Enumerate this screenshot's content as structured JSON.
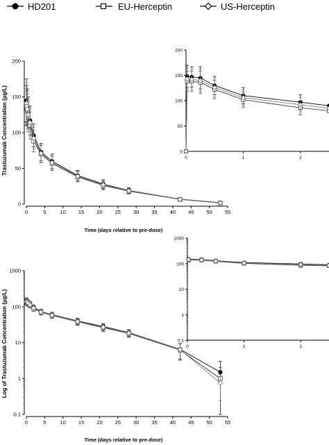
{
  "legend": {
    "items": [
      {
        "label": "HD201",
        "marker": "filled-circle"
      },
      {
        "label": "EU-Herceptin",
        "marker": "open-square"
      },
      {
        "label": "US-Herceptin",
        "marker": "open-diamond"
      }
    ]
  },
  "colors": {
    "HD201": "#000000",
    "EU-Herceptin": "#3a3a3a",
    "US-Herceptin": "#7a7a7a"
  },
  "chart_data": [
    {
      "type": "line",
      "scale": "linear",
      "xlabel": "Time (days relative to pre-dose)",
      "ylabel": "Trastuzumab Concentration (µg/L)",
      "xlim": [
        0,
        55
      ],
      "ylim": [
        0,
        200
      ],
      "xticks": [
        0,
        5,
        10,
        15,
        20,
        25,
        30,
        35,
        40,
        45,
        50,
        55
      ],
      "yticks": [
        0,
        50,
        100,
        150,
        200
      ],
      "x": [
        0.02,
        0.1,
        0.25,
        0.5,
        1,
        2,
        4,
        7,
        14,
        21,
        28,
        42,
        53
      ],
      "series": [
        {
          "name": "HD201",
          "values": [
            145,
            140,
            136,
            128,
            117,
            96,
            73,
            60,
            40,
            28,
            19,
            7,
            2
          ],
          "err": [
            30,
            26,
            25,
            22,
            20,
            16,
            12,
            10,
            7,
            6,
            4,
            2,
            1
          ]
        },
        {
          "name": "EU-Herceptin",
          "values": [
            138,
            134,
            130,
            122,
            110,
            88,
            70,
            57,
            38,
            26,
            18,
            6.5,
            1.5
          ],
          "err": [
            28,
            25,
            24,
            21,
            19,
            15,
            12,
            10,
            7,
            6,
            4,
            2,
            1
          ]
        },
        {
          "name": "US-Herceptin",
          "values": [
            141,
            137,
            133,
            125,
            114,
            92,
            71,
            58,
            39,
            27,
            18.5,
            6.7,
            1.7
          ],
          "err": [
            29,
            25,
            24,
            21,
            19,
            15,
            12,
            10,
            7,
            6,
            4,
            2,
            1
          ]
        }
      ]
    },
    {
      "type": "line",
      "scale": "linear",
      "inset": true,
      "xlim": [
        0,
        2.5
      ],
      "ylim": [
        0,
        200
      ],
      "xticks": [
        0,
        1,
        2
      ],
      "yticks": [
        0,
        50,
        100,
        150,
        200
      ],
      "x": [
        0,
        0.02,
        0.1,
        0.25,
        0.5,
        1,
        2,
        2.5
      ],
      "series": [
        {
          "name": "HD201",
          "values": [
            0,
            148,
            147,
            145,
            130,
            110,
            97,
            90
          ],
          "err": [
            0,
            22,
            20,
            22,
            18,
            16,
            15,
            0
          ]
        },
        {
          "name": "EU-Herceptin",
          "values": [
            0,
            138,
            138,
            136,
            122,
            102,
            86,
            80
          ],
          "err": [
            0,
            20,
            20,
            22,
            18,
            15,
            14,
            0
          ]
        },
        {
          "name": "US-Herceptin",
          "values": [
            0,
            143,
            142,
            140,
            126,
            106,
            92,
            85
          ],
          "err": [
            0,
            21,
            20,
            22,
            18,
            15,
            14,
            0
          ]
        }
      ]
    },
    {
      "type": "line",
      "scale": "log",
      "xlabel": "Time (days relative to pre-dose)",
      "ylabel": "Log of Trastuzumab Concentration (µg/L)",
      "xlim": [
        0,
        55
      ],
      "ylim": [
        0.1,
        1000
      ],
      "xticks": [
        0,
        5,
        10,
        15,
        20,
        25,
        30,
        35,
        40,
        45,
        50,
        55
      ],
      "yticks": [
        0.1,
        1,
        10,
        100,
        1000
      ],
      "ytick_labels": [
        "0.1",
        "1",
        "10",
        "100",
        "1000"
      ],
      "x": [
        0.02,
        0.1,
        0.25,
        0.5,
        1,
        2,
        4,
        7,
        14,
        21,
        28,
        42,
        53
      ],
      "series": [
        {
          "name": "HD201",
          "values": [
            145,
            140,
            136,
            128,
            117,
            96,
            73,
            60,
            40,
            28,
            19,
            6.5,
            1.5
          ],
          "err": [
            30,
            26,
            25,
            22,
            20,
            16,
            12,
            10,
            8,
            6,
            4,
            3,
            1.5
          ]
        },
        {
          "name": "EU-Herceptin",
          "values": [
            138,
            134,
            130,
            122,
            110,
            88,
            70,
            57,
            38,
            26,
            18,
            6.2,
            1.0
          ],
          "err": [
            28,
            25,
            24,
            21,
            19,
            15,
            12,
            10,
            8,
            6,
            4,
            3,
            1
          ]
        },
        {
          "name": "US-Herceptin",
          "values": [
            141,
            137,
            133,
            125,
            114,
            92,
            71,
            58,
            39,
            27,
            18.5,
            6.4,
            0.75
          ],
          "err": [
            29,
            25,
            24,
            21,
            19,
            15,
            12,
            10,
            8,
            6,
            4,
            3,
            0.5
          ]
        }
      ]
    },
    {
      "type": "line",
      "scale": "log",
      "inset": true,
      "xlim": [
        0,
        2.5
      ],
      "ylim": [
        0.1,
        1000
      ],
      "xticks": [
        0,
        1,
        2
      ],
      "yticks": [
        0.1,
        1,
        10,
        100,
        1000
      ],
      "ytick_labels": [
        "0.1",
        "1",
        "10",
        "100",
        "1000"
      ],
      "x": [
        0.02,
        0.25,
        0.5,
        1,
        2,
        2.5
      ],
      "series": [
        {
          "name": "HD201",
          "values": [
            148,
            145,
            130,
            110,
            97,
            90
          ],
          "err": [
            25,
            24,
            20,
            16,
            15,
            0
          ]
        },
        {
          "name": "EU-Herceptin",
          "values": [
            138,
            136,
            122,
            102,
            86,
            82
          ],
          "err": [
            24,
            22,
            18,
            15,
            14,
            0
          ]
        },
        {
          "name": "US-Herceptin",
          "values": [
            143,
            140,
            126,
            106,
            92,
            86
          ],
          "err": [
            24,
            22,
            18,
            15,
            14,
            0
          ]
        }
      ]
    }
  ]
}
